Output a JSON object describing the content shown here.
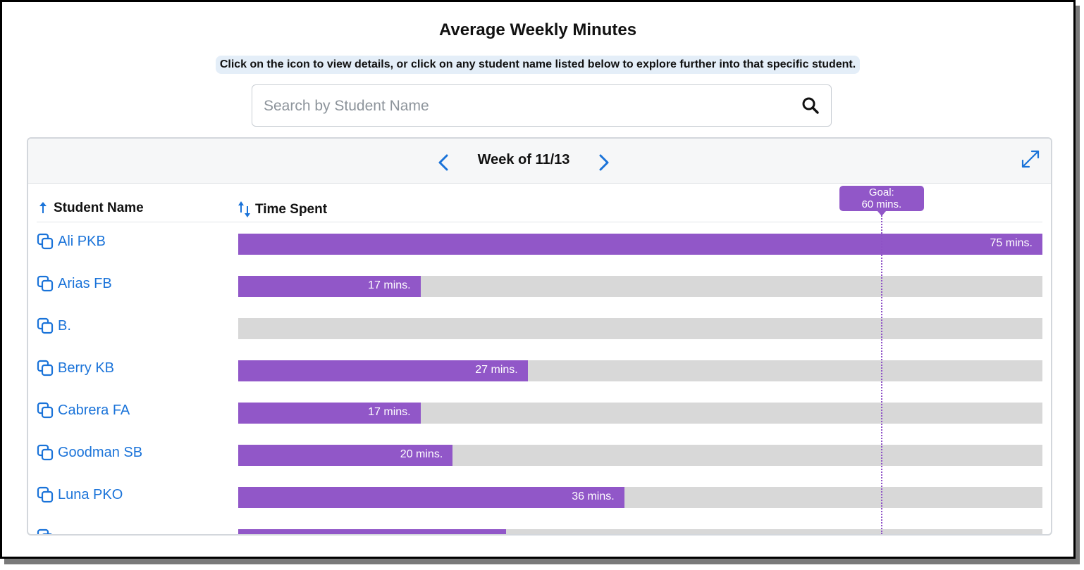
{
  "page": {
    "title": "Average Weekly Minutes",
    "hint": "Click on the icon to view details, or click on any student name listed below to explore further into that specific student."
  },
  "search": {
    "placeholder": "Search by Student Name",
    "value": "",
    "icon": "search-icon"
  },
  "panel": {
    "week_label": "Week of 11/13",
    "prev_icon": "chevron-left-icon",
    "next_icon": "chevron-right-icon",
    "expand_icon": "expand-icon"
  },
  "columns": {
    "name": {
      "label": "Student Name",
      "sort": "ascending"
    },
    "time": {
      "label": "Time Spent",
      "sort": "sortable"
    }
  },
  "goal": {
    "line1": "Goal:",
    "line2": "60 mins.",
    "minutes": 60
  },
  "scale_max_minutes": 75,
  "colors": {
    "bar_fill": "#9157c8",
    "bar_track": "#d8d8d8",
    "link": "#1a73d9",
    "goal": "#9157c8"
  },
  "students": [
    {
      "name": "Ali PKB",
      "minutes": 75,
      "label": "75 mins."
    },
    {
      "name": "Arias FB",
      "minutes": 17,
      "label": "17 mins."
    },
    {
      "name": "B.",
      "minutes": 0,
      "label": ""
    },
    {
      "name": "Berry KB",
      "minutes": 27,
      "label": "27 mins."
    },
    {
      "name": "Cabrera FA",
      "minutes": 17,
      "label": "17 mins."
    },
    {
      "name": "Goodman SB",
      "minutes": 20,
      "label": "20 mins."
    },
    {
      "name": "Luna PKO",
      "minutes": 36,
      "label": "36 mins."
    },
    {
      "name": "",
      "minutes": 25,
      "label": ""
    }
  ]
}
